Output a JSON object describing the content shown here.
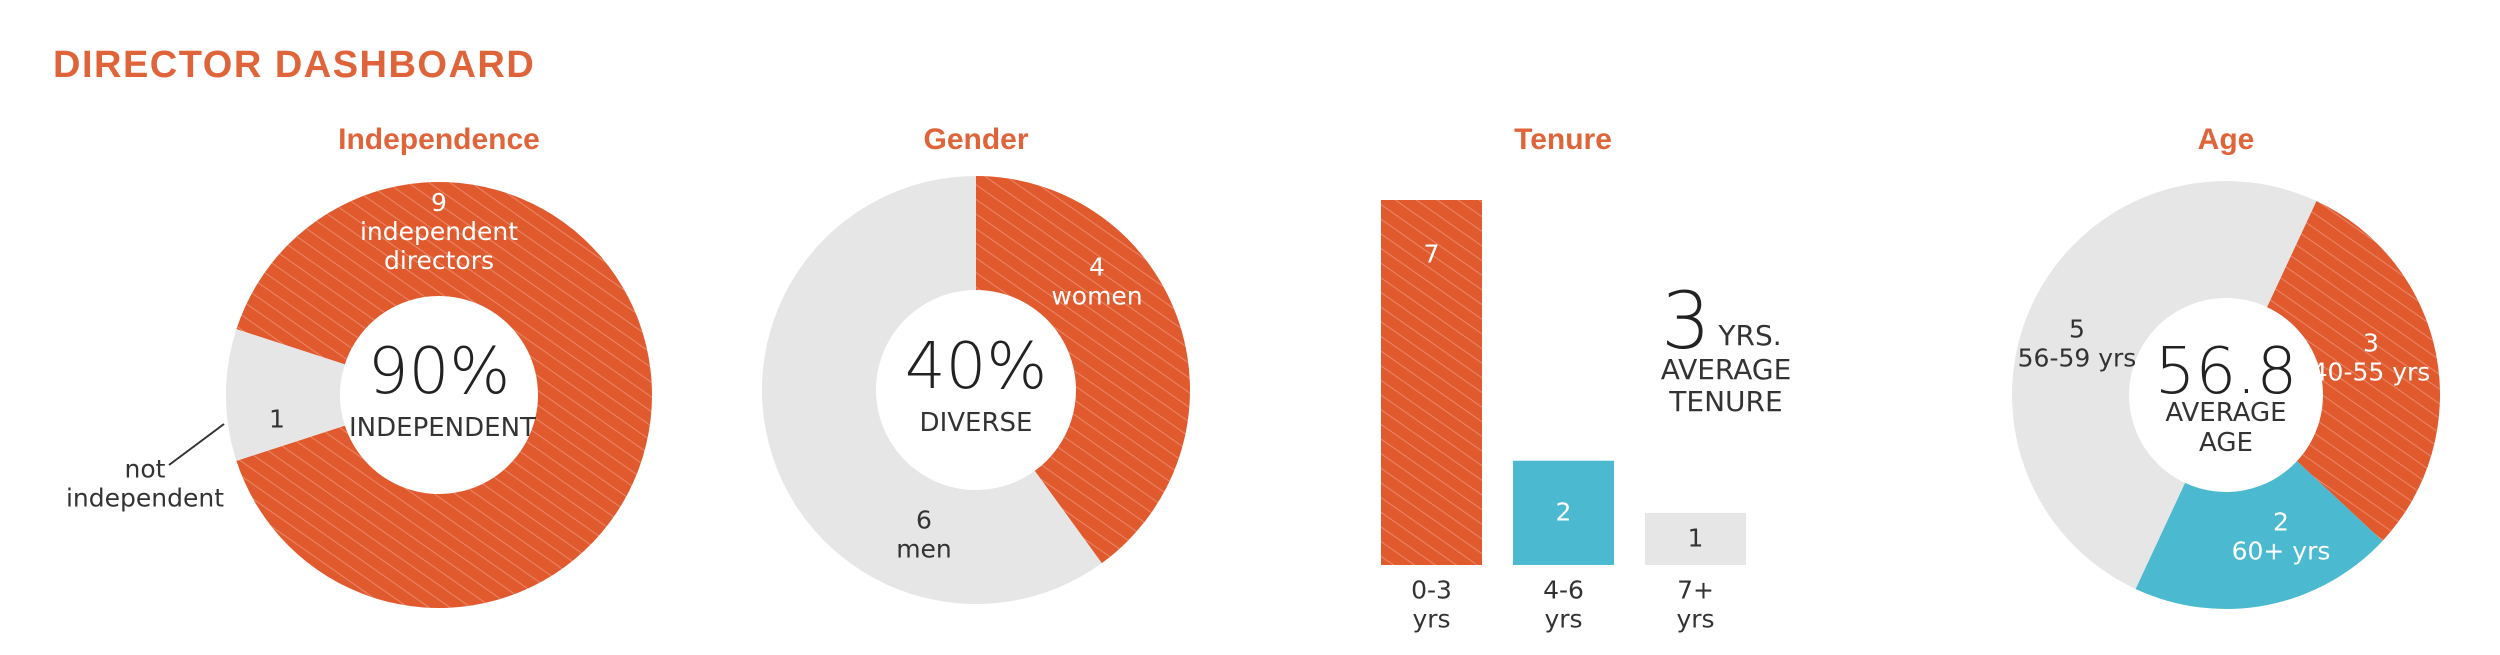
{
  "title": "DIRECTOR DASHBOARD",
  "chart_data": [
    {
      "type": "donut",
      "title": "Independence",
      "categories": [
        "independent directors",
        "not independent"
      ],
      "values": [
        9,
        1
      ],
      "colors": [
        "#e05a2e",
        "#e6e6e6"
      ],
      "hatched": [
        true,
        false
      ],
      "center_value": "90%",
      "center_label": "INDEPENDENT"
    },
    {
      "type": "donut",
      "title": "Gender",
      "categories": [
        "women",
        "men"
      ],
      "values": [
        4,
        6
      ],
      "colors": [
        "#e05a2e",
        "#e6e6e6"
      ],
      "hatched": [
        true,
        false
      ],
      "center_value": "40%",
      "center_label": "DIVERSE"
    },
    {
      "type": "bar",
      "title": "Tenure",
      "categories": [
        "0-3 yrs",
        "4-6 yrs",
        "7+ yrs"
      ],
      "values": [
        7,
        2,
        1
      ],
      "colors": [
        "#e05a2e",
        "#4bb9d0",
        "#e6e6e6"
      ],
      "hatched": [
        true,
        false,
        false
      ],
      "annotation": {
        "value": 3,
        "unit": "YRS.",
        "label": "AVERAGE TENURE"
      }
    },
    {
      "type": "donut",
      "title": "Age",
      "categories": [
        "40-55 yrs",
        "60+ yrs",
        "56-59 yrs"
      ],
      "values": [
        3,
        2,
        5
      ],
      "colors": [
        "#e05a2e",
        "#4bb9d0",
        "#e6e6e6"
      ],
      "hatched": [
        true,
        false,
        false
      ],
      "center_value": "56.8",
      "center_label": "AVERAGE AGE"
    }
  ]
}
